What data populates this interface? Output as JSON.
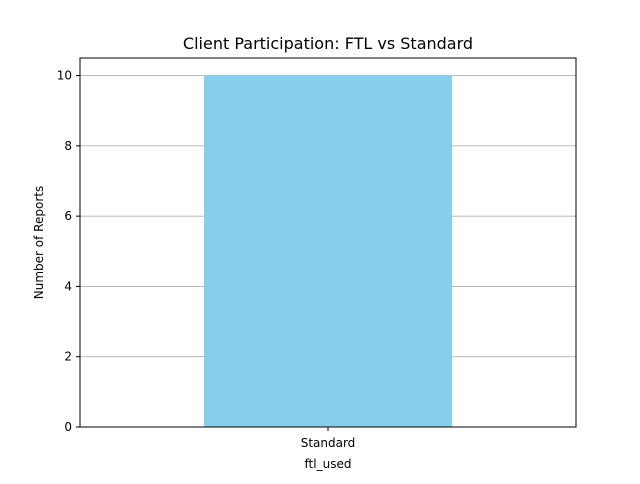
{
  "chart_data": {
    "type": "bar",
    "title": "Client Participation: FTL vs Standard",
    "xlabel": "ftl_used",
    "ylabel": "Number of Reports",
    "categories": [
      "Standard"
    ],
    "values": [
      10
    ],
    "ylim": [
      0,
      10.5
    ],
    "yticks": [
      0,
      2,
      4,
      6,
      8,
      10
    ],
    "grid": "y-axis only",
    "legend": "none",
    "bar_color": "#87ceeb",
    "grid_color": "#b0b0b0"
  }
}
